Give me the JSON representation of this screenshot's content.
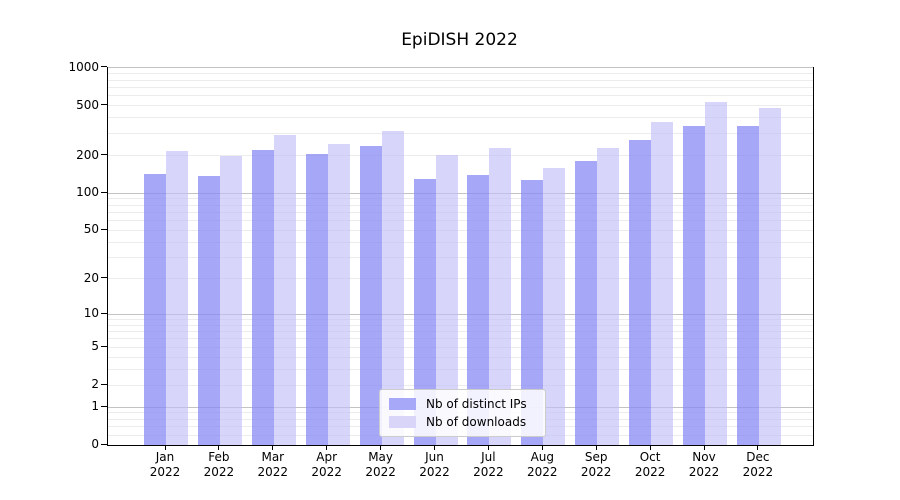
{
  "chart_data": {
    "type": "bar",
    "title": "EpiDISH 2022",
    "categories": [
      "Jan",
      "Feb",
      "Mar",
      "Apr",
      "May",
      "Jun",
      "Jul",
      "Aug",
      "Sep",
      "Oct",
      "Nov",
      "Dec"
    ],
    "year_label": "2022",
    "series": [
      {
        "name": "Nb of distinct IPs",
        "color": "#a8a8f8",
        "fill": "rgba(138,138,246,0.75)",
        "values": [
          143,
          137,
          223,
          205,
          240,
          130,
          140,
          128,
          181,
          266,
          345,
          345
        ]
      },
      {
        "name": "Nb of downloads",
        "color": "#d8d5f9",
        "fill": "rgba(192,188,246,0.63)",
        "values": [
          217,
          198,
          290,
          249,
          313,
          202,
          229,
          159,
          232,
          372,
          540,
          483
        ]
      }
    ],
    "yaxis": {
      "scale": "log10(value+1)",
      "ticks": [
        1000,
        500,
        200,
        100,
        50,
        20,
        10,
        5,
        2,
        1,
        0
      ],
      "range_top": 1000,
      "major_gridlines": [
        1,
        10,
        100,
        1000
      ],
      "grid": true
    },
    "legend_position": "lower center",
    "colors": {
      "minor_grid": "#ececec",
      "major_grid": "#c3c3c3",
      "spine": "#000000",
      "text": "#000000",
      "background": "#ffffff"
    }
  }
}
